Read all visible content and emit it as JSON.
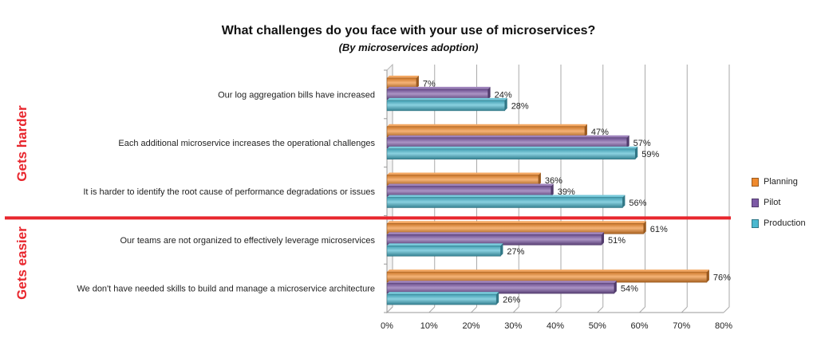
{
  "chart_data": {
    "type": "bar",
    "orientation": "horizontal",
    "title": "What challenges do you face with your use of microservices?",
    "subtitle": "(By microservices adoption)",
    "categories": [
      "Our log aggregation bills have increased",
      "Each additional microservice increases the operational challenges",
      "It is harder to identify the root cause of performance degradations or issues",
      "Our teams are not organized to effectively leverage microservices",
      "We don't have needed skills to build and manage a microservice architecture"
    ],
    "series": [
      {
        "name": "Planning",
        "color": "#ef8a2e",
        "values": [
          7,
          47,
          36,
          61,
          76
        ],
        "labels": [
          "7%",
          "47%",
          "36%",
          "61%",
          "76%"
        ]
      },
      {
        "name": "Pilot",
        "color": "#7d5aa6",
        "values": [
          24,
          57,
          39,
          51,
          54
        ],
        "labels": [
          "24%",
          "57%",
          "39%",
          "51%",
          "54%"
        ]
      },
      {
        "name": "Production",
        "color": "#4bb8cf",
        "values": [
          28,
          59,
          56,
          27,
          26
        ],
        "labels": [
          "28%",
          "59%",
          "56%",
          "27%",
          "26%"
        ]
      }
    ],
    "x_ticks": [
      "0%",
      "10%",
      "20%",
      "30%",
      "40%",
      "50%",
      "60%",
      "70%",
      "80%"
    ],
    "xlim": [
      0,
      80
    ],
    "grid": true,
    "legend_position": "right",
    "groups": [
      {
        "label": "Gets harder",
        "categories": [
          0,
          1,
          2
        ]
      },
      {
        "label": "Gets easier",
        "categories": [
          3,
          4
        ]
      }
    ],
    "separator_color": "#e8262d",
    "group_label_color": "#e8262d"
  }
}
